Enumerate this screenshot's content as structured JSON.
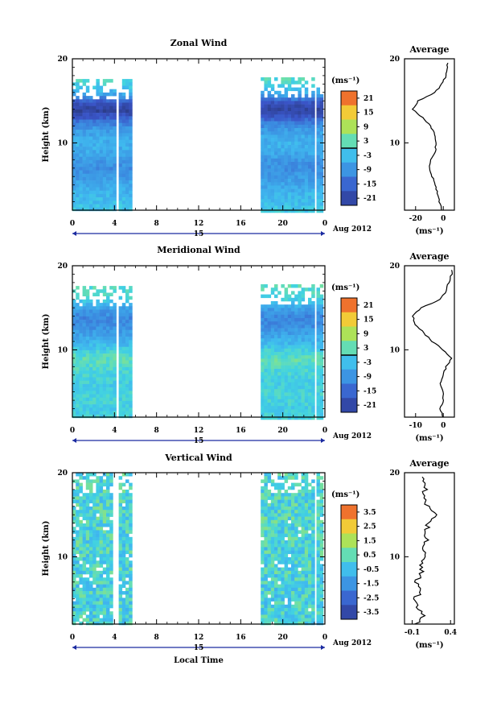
{
  "figure": {
    "panels": [
      {
        "title": "Zonal Wind",
        "avg_title": "Average",
        "ylabel": "Height (km)",
        "yticks": [
          "20",
          "10"
        ],
        "xticks": [
          "0",
          "4",
          "8",
          "12",
          "16",
          "20",
          "0"
        ],
        "day_label": "15",
        "month_label": "Aug 2012",
        "unit_label": "(ms⁻¹)",
        "colorbar_ticks": [
          "21",
          "15",
          "9",
          "3",
          "-3",
          "-9",
          "-15",
          "-21"
        ],
        "avg_xticks": [
          "-20",
          "0"
        ],
        "avg_unit": "(ms⁻¹)",
        "avg_yticks": [
          "20",
          "10"
        ]
      },
      {
        "title": "Meridional Wind",
        "avg_title": "Average",
        "ylabel": "Height (km)",
        "yticks": [
          "20",
          "10"
        ],
        "xticks": [
          "0",
          "4",
          "8",
          "12",
          "16",
          "20",
          "0"
        ],
        "day_label": "15",
        "month_label": "Aug 2012",
        "unit_label": "(ms⁻¹)",
        "colorbar_ticks": [
          "21",
          "15",
          "9",
          "3",
          "-3",
          "-9",
          "-15",
          "-21"
        ],
        "avg_xticks": [
          "-10",
          "0"
        ],
        "avg_unit": "(ms⁻¹)",
        "avg_yticks": [
          "20",
          "10"
        ]
      },
      {
        "title": "Vertical Wind",
        "avg_title": "Average",
        "ylabel": "Height (km)",
        "yticks": [
          "20",
          "10"
        ],
        "xticks": [
          "0",
          "4",
          "8",
          "12",
          "16",
          "20",
          "0"
        ],
        "day_label": "15",
        "month_label": "Aug 2012",
        "unit_label": "(ms⁻¹)",
        "colorbar_ticks": [
          "3.5",
          "2.5",
          "1.5",
          "0.5",
          "-0.5",
          "-1.5",
          "-2.5",
          "-3.5"
        ],
        "avg_xticks": [
          "-0.1",
          "0.4"
        ],
        "avg_unit": "(ms⁻¹)",
        "avg_yticks": [
          "20",
          "10"
        ]
      }
    ],
    "xlabel": "Local Time"
  },
  "chart_data": [
    {
      "type": "heatmap",
      "title": "Zonal Wind",
      "xlabel": "Local Time",
      "ylabel": "Height (km)",
      "xlim": [
        0,
        24
      ],
      "ylim": [
        2,
        20
      ],
      "data_blocks_hours": [
        [
          0,
          3.9
        ],
        [
          4.4,
          5.4
        ],
        [
          17.9,
          22.8
        ],
        [
          23.2,
          23.6
        ]
      ],
      "top_height_km": [
        17.6,
        17.6,
        17.8,
        17.8
      ],
      "colorbar": {
        "range": [
          -24,
          24
        ],
        "ticks": [
          21,
          15,
          9,
          3,
          -3,
          -9,
          -15,
          -21
        ],
        "zero_contour": true
      },
      "profile_heights_km": [
        2,
        3,
        4,
        5,
        6,
        7,
        8,
        9,
        10,
        11,
        12,
        13,
        14,
        15,
        16,
        17,
        18,
        19
      ],
      "profile_values": [
        -1,
        -3,
        -4,
        -6,
        -8,
        -10,
        -9,
        -6,
        -5,
        -6,
        -9,
        -15,
        -22,
        -18,
        -6,
        -1,
        2,
        3
      ],
      "avg_xlim": [
        -28,
        8
      ],
      "avg_ylim": [
        2,
        20
      ]
    },
    {
      "type": "heatmap",
      "title": "Meridional Wind",
      "xlabel": "Local Time",
      "ylabel": "Height (km)",
      "xlim": [
        0,
        24
      ],
      "ylim": [
        2,
        20
      ],
      "data_blocks_hours": [
        [
          0,
          3.9
        ],
        [
          4.4,
          5.6
        ],
        [
          17.9,
          22.8
        ],
        [
          23.2,
          23.6
        ]
      ],
      "top_height_km": [
        17.6,
        17.6,
        17.8,
        17.8
      ],
      "colorbar": {
        "range": [
          -24,
          24
        ],
        "ticks": [
          21,
          15,
          9,
          3,
          -3,
          -9,
          -15,
          -21
        ],
        "zero_contour": true
      },
      "profile_heights_km": [
        2,
        3,
        4,
        5,
        6,
        7,
        8,
        9,
        10,
        11,
        12,
        13,
        14,
        15,
        16,
        17,
        18,
        19
      ],
      "profile_values": [
        0,
        -1,
        0,
        0,
        -1,
        0,
        1,
        3,
        0,
        -4,
        -7,
        -10,
        -11,
        -8,
        -1,
        1,
        2,
        3
      ],
      "avg_xlim": [
        -14,
        4
      ],
      "avg_ylim": [
        2,
        20
      ]
    },
    {
      "type": "heatmap",
      "title": "Vertical Wind",
      "xlabel": "Local Time",
      "ylabel": "Height (km)",
      "xlim": [
        0,
        24
      ],
      "ylim": [
        2,
        20
      ],
      "data_blocks_hours": [
        [
          0,
          3.6
        ],
        [
          4.4,
          5.5
        ],
        [
          17.9,
          22.8
        ],
        [
          23.2,
          23.6
        ]
      ],
      "top_height_km": [
        20,
        20,
        20,
        20
      ],
      "colorbar": {
        "range": [
          -4,
          4
        ],
        "ticks": [
          3.5,
          2.5,
          1.5,
          0.5,
          -0.5,
          -1.5,
          -2.5,
          -3.5
        ],
        "zero_contour": false
      },
      "profile_heights_km": [
        2,
        3,
        4,
        5,
        6,
        7,
        8,
        9,
        10,
        11,
        12,
        13,
        14,
        15,
        16,
        17,
        18,
        19
      ],
      "profile_values": [
        -0.05,
        0.05,
        -0.02,
        -0.06,
        0.02,
        -0.05,
        0.03,
        0.02,
        0.05,
        0.06,
        0.1,
        0.08,
        0.12,
        0.2,
        0.1,
        0.08,
        0.06,
        0.05
      ],
      "avg_xlim": [
        -0.2,
        0.45
      ],
      "avg_ylim": [
        2,
        20
      ]
    }
  ]
}
